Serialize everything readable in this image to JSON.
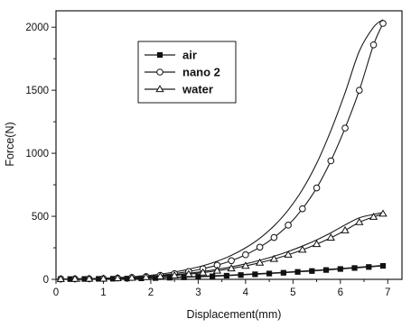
{
  "chart_data": {
    "type": "line",
    "xlabel": "Displacement(mm)",
    "ylabel": "Force(N)",
    "xlim": [
      0,
      7.3
    ],
    "ylim": [
      0,
      2130
    ],
    "x_ticks": [
      0,
      1,
      2,
      3,
      4,
      5,
      6,
      7
    ],
    "y_ticks": [
      0,
      500,
      1000,
      1500,
      2000
    ],
    "grid": false,
    "legend_position": "top-left",
    "series": [
      {
        "name": "air",
        "marker": "filled-square",
        "x": [
          0.1,
          0.3,
          0.6,
          0.9,
          1.2,
          1.5,
          1.8,
          2.1,
          2.4,
          2.7,
          3.0,
          3.3,
          3.6,
          3.9,
          4.2,
          4.5,
          4.8,
          5.1,
          5.4,
          5.7,
          6.0,
          6.3,
          6.6,
          6.9
        ],
        "y": [
          2,
          2,
          3,
          4,
          5,
          6,
          8,
          10,
          13,
          16,
          20,
          24,
          29,
          34,
          40,
          46,
          52,
          59,
          66,
          74,
          82,
          90,
          98,
          107
        ],
        "upper_y": [
          3,
          3,
          4,
          5,
          6,
          8,
          10,
          13,
          16,
          19,
          23,
          28,
          33,
          38,
          44,
          50,
          56,
          63,
          70,
          78,
          86,
          94,
          102,
          111
        ]
      },
      {
        "name": "nano 2",
        "marker": "open-circle",
        "x": [
          0.1,
          0.4,
          0.7,
          1.0,
          1.3,
          1.6,
          1.9,
          2.2,
          2.5,
          2.8,
          3.1,
          3.4,
          3.7,
          4.0,
          4.3,
          4.6,
          4.9,
          5.2,
          5.5,
          5.8,
          6.1,
          6.4,
          6.7,
          6.9
        ],
        "y": [
          2,
          3,
          4,
          6,
          10,
          15,
          22,
          32,
          45,
          62,
          84,
          112,
          148,
          195,
          255,
          332,
          430,
          560,
          725,
          940,
          1200,
          1500,
          1860,
          2030
        ],
        "upper_y": [
          3,
          4,
          6,
          9,
          14,
          20,
          29,
          41,
          58,
          80,
          108,
          144,
          190,
          250,
          326,
          424,
          550,
          712,
          920,
          1180,
          1480,
          1810,
          2000,
          2060
        ]
      },
      {
        "name": "water",
        "marker": "open-triangle",
        "x": [
          0.1,
          0.4,
          0.7,
          1.0,
          1.3,
          1.6,
          1.9,
          2.2,
          2.5,
          2.8,
          3.1,
          3.4,
          3.7,
          4.0,
          4.3,
          4.6,
          4.9,
          5.2,
          5.5,
          5.8,
          6.1,
          6.4,
          6.7,
          6.9
        ],
        "y": [
          2,
          3,
          4,
          5,
          8,
          12,
          17,
          23,
          31,
          41,
          53,
          68,
          86,
          107,
          132,
          161,
          195,
          234,
          279,
          330,
          388,
          453,
          495,
          520
        ],
        "upper_y": [
          3,
          4,
          5,
          7,
          10,
          15,
          21,
          28,
          37,
          48,
          62,
          79,
          99,
          123,
          151,
          183,
          221,
          264,
          313,
          369,
          432,
          488,
          515,
          530
        ]
      }
    ]
  }
}
